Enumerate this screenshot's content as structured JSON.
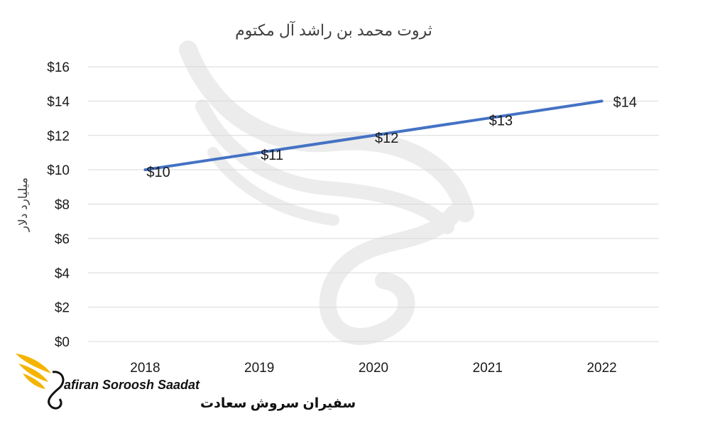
{
  "chart_data": {
    "type": "line",
    "title": "ثروت محمد بن راشد آل مکتوم",
    "ylabel": "میلیارد دلار",
    "categories": [
      "2018",
      "2019",
      "2020",
      "2021",
      "2022"
    ],
    "series": [
      {
        "values": [
          10,
          11,
          12,
          13,
          14
        ],
        "data_labels": [
          "$10",
          "$11",
          "$12",
          "$13",
          "$14"
        ],
        "color": "#4472c4"
      }
    ],
    "ylim": [
      0,
      16
    ],
    "y_ticks": [
      0,
      2,
      4,
      6,
      8,
      10,
      12,
      14,
      16
    ],
    "y_tick_labels": [
      "$0",
      "$2",
      "$4",
      "$6",
      "$8",
      "$10",
      "$12",
      "$14",
      "$16"
    ],
    "grid": true,
    "legend": "none"
  },
  "logo": {
    "name_en": "afiran Soroosh Saadat",
    "name_fa": "سفیران سروش سعادت",
    "color": "#f4b400"
  },
  "watermark": {
    "color": "#ececec"
  }
}
